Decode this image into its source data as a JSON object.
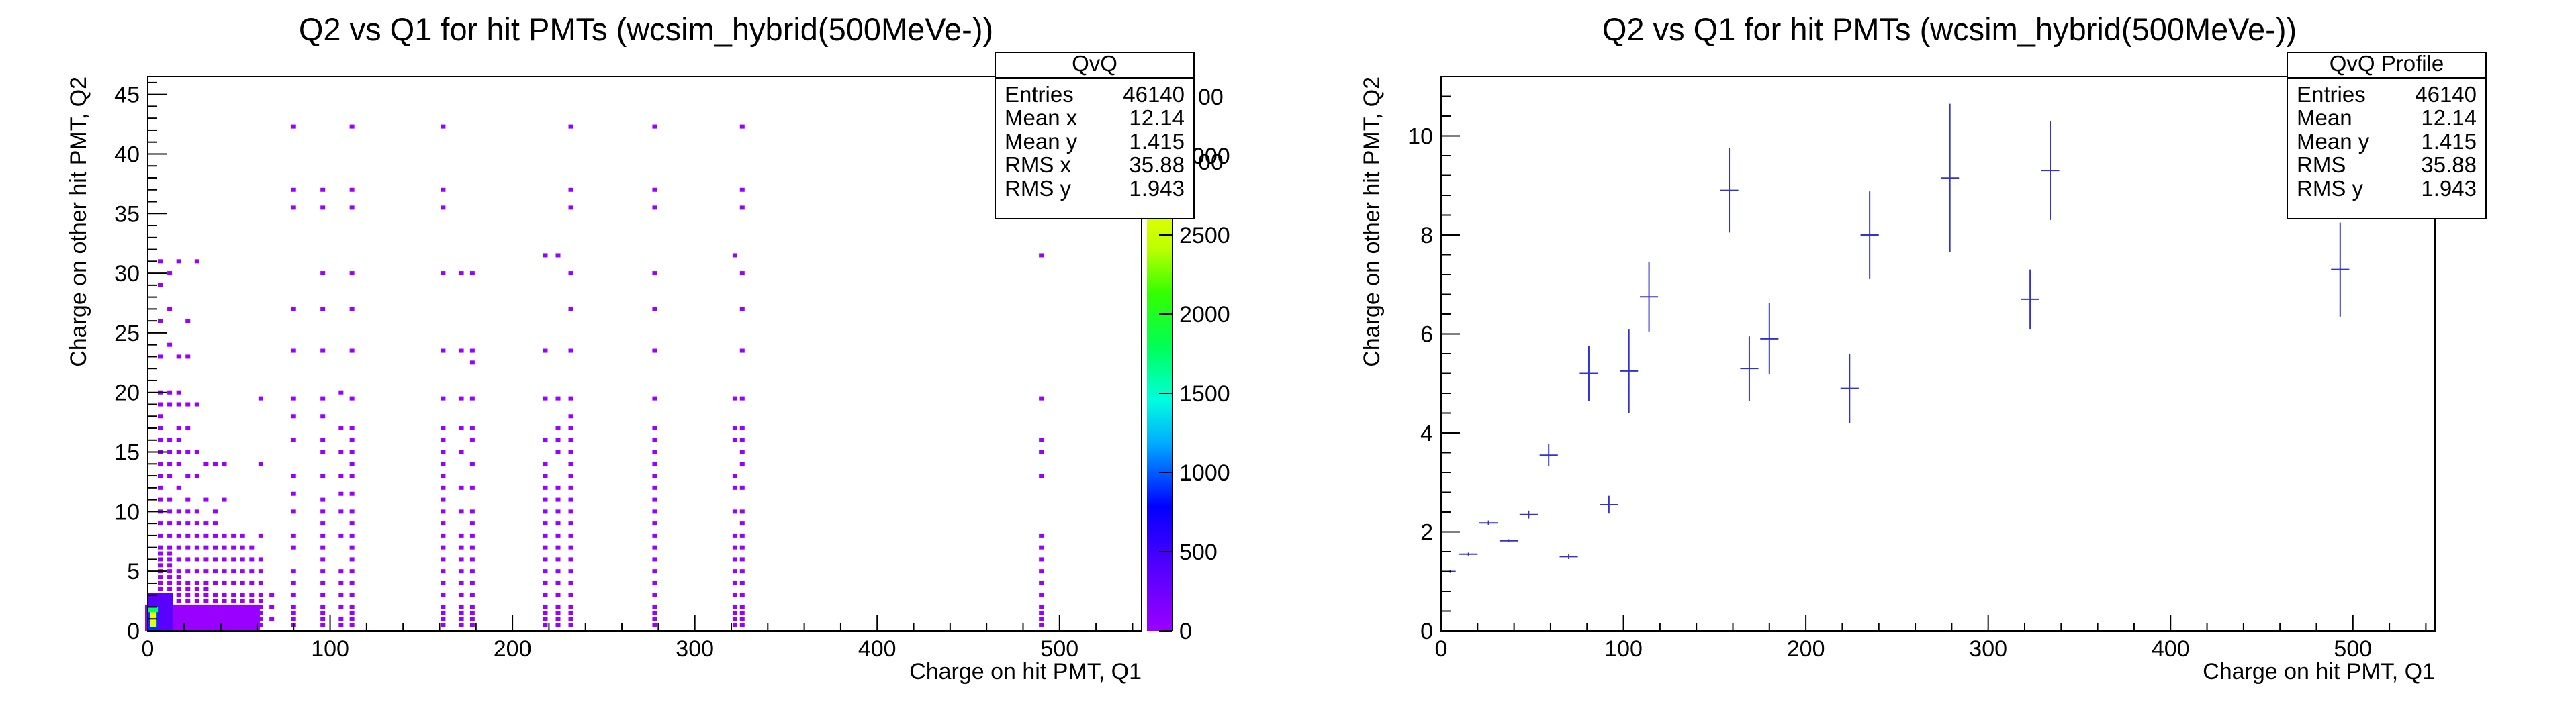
{
  "chart_data": [
    {
      "type": "heatmap",
      "title": "Q2 vs Q1 for hit PMTs (wcsim_hybrid(500MeVe-))",
      "xlabel": "Charge on hit PMT, Q1",
      "ylabel": "Charge on other hit PMT, Q2",
      "xlim": [
        0,
        545
      ],
      "ylim": [
        0,
        46.5
      ],
      "xticks": [
        "0",
        "100",
        "200",
        "300",
        "400",
        "500"
      ],
      "yticks": [
        "0",
        "5",
        "10",
        "15",
        "20",
        "25",
        "30",
        "35",
        "40",
        "45"
      ],
      "grid": false,
      "colorbar": {
        "range": [
          0,
          3500
        ],
        "ticks": [
          "0",
          "500",
          "1000",
          "1500",
          "2000",
          "2500",
          "3000"
        ],
        "hidden_tick_fragments": [
          "00",
          "00"
        ]
      },
      "stats": {
        "title": "QvQ",
        "rows": [
          {
            "label": "Entries",
            "value": "46140"
          },
          {
            "label": "Mean x",
            "value": "12.14"
          },
          {
            "label": "Mean y",
            "value": "1.415"
          },
          {
            "label": "RMS x",
            "value": "35.88"
          },
          {
            "label": "RMS y",
            "value": "1.943"
          }
        ]
      },
      "columns": [
        {
          "x": 7,
          "ys": [
            0.5,
            1,
            1.5,
            2,
            2.5,
            3,
            3.5,
            4,
            4.5,
            5,
            5.5,
            6,
            6.5,
            7,
            8,
            9,
            10,
            11,
            12,
            13,
            14,
            15,
            16,
            17,
            18,
            19,
            20,
            23,
            26,
            29,
            31
          ]
        },
        {
          "x": 12,
          "ys": [
            0.5,
            1,
            1.5,
            2,
            2.5,
            3,
            3.5,
            4,
            4.5,
            5,
            5.5,
            6,
            6.5,
            7,
            8,
            9,
            10,
            11,
            13,
            14,
            15,
            16,
            19,
            20,
            24,
            27,
            30
          ]
        },
        {
          "x": 17,
          "ys": [
            0.5,
            1,
            1.5,
            2,
            2.5,
            3,
            3.5,
            4,
            4.5,
            5,
            6,
            7,
            8,
            9,
            10,
            12,
            14,
            15,
            16,
            17,
            19,
            20,
            23,
            31
          ]
        },
        {
          "x": 22,
          "ys": [
            0.5,
            1,
            1.5,
            2,
            2.5,
            3,
            3.5,
            4,
            5,
            6,
            7,
            8,
            9,
            10,
            11,
            13,
            15,
            17,
            19,
            23,
            26
          ]
        },
        {
          "x": 27,
          "ys": [
            0.5,
            1,
            1.5,
            2,
            2.5,
            3,
            3.5,
            4,
            5,
            6,
            7,
            8,
            9,
            10,
            13,
            15,
            19,
            31
          ]
        },
        {
          "x": 32,
          "ys": [
            0.5,
            1,
            1.5,
            2,
            2.5,
            3,
            3.5,
            4,
            5,
            6,
            7,
            8,
            9,
            11,
            14
          ]
        },
        {
          "x": 37,
          "ys": [
            0.5,
            1,
            1.5,
            2,
            2.5,
            3,
            4,
            5,
            6,
            7,
            8,
            9,
            10,
            14
          ]
        },
        {
          "x": 42,
          "ys": [
            0.5,
            1,
            1.5,
            2,
            2.5,
            3,
            4,
            5,
            6,
            7,
            8,
            11,
            14
          ]
        },
        {
          "x": 47,
          "ys": [
            0.5,
            1,
            1.5,
            2,
            2.5,
            3,
            4,
            5,
            6,
            7,
            8
          ]
        },
        {
          "x": 52,
          "ys": [
            0.5,
            1,
            1.5,
            2,
            2.5,
            3,
            4,
            5,
            6,
            7,
            8
          ]
        },
        {
          "x": 57,
          "ys": [
            0.5,
            1,
            1.5,
            2,
            2.5,
            3,
            4,
            5,
            6,
            7
          ]
        },
        {
          "x": 62,
          "ys": [
            0.5,
            1,
            1.5,
            2,
            2.5,
            3,
            4,
            5,
            6,
            8,
            14,
            19.5
          ]
        },
        {
          "x": 68,
          "ys": [
            1,
            2,
            3
          ]
        },
        {
          "x": 80,
          "ys": [
            0.5,
            1,
            1.5,
            2,
            3,
            4,
            5,
            7,
            8,
            10,
            11.5,
            13,
            16,
            18,
            19.5,
            23.5,
            27,
            35.5,
            37,
            42.3
          ]
        },
        {
          "x": 96,
          "ys": [
            0.5,
            1,
            1.5,
            2,
            3,
            4,
            5,
            6,
            7,
            8,
            9,
            10,
            11,
            13,
            15,
            16,
            18,
            19.5,
            23.5,
            27,
            30,
            35.5,
            37
          ]
        },
        {
          "x": 106,
          "ys": [
            0.5,
            1,
            2,
            3,
            4,
            5,
            8,
            10,
            11.5,
            13,
            15,
            17,
            20
          ]
        },
        {
          "x": 112,
          "ys": [
            0.5,
            1,
            1.5,
            2,
            3,
            4,
            5,
            6,
            7,
            8,
            9,
            10,
            11.5,
            13,
            14,
            15,
            16,
            17,
            19.5,
            23.5,
            27,
            30,
            35.5,
            37,
            42.3
          ]
        },
        {
          "x": 162,
          "ys": [
            0.5,
            1,
            1.5,
            2,
            3,
            4,
            5,
            6,
            7,
            8,
            9,
            10,
            11,
            12,
            13,
            14,
            15,
            16,
            17,
            19.5,
            23.5,
            30,
            35.5,
            37,
            42.3
          ]
        },
        {
          "x": 172,
          "ys": [
            0.5,
            1,
            1.5,
            2,
            3,
            4,
            5,
            6,
            7,
            8,
            10,
            12,
            15,
            17,
            19.5,
            23.5,
            30
          ]
        },
        {
          "x": 178,
          "ys": [
            0.5,
            1,
            1.5,
            2,
            3,
            4,
            5,
            6,
            7,
            8,
            9,
            10,
            12,
            14,
            16,
            17,
            19.5,
            22.5,
            23.5,
            30
          ]
        },
        {
          "x": 218,
          "ys": [
            0.5,
            1,
            1.5,
            2,
            3,
            4,
            5,
            6,
            7,
            8,
            9,
            10,
            11,
            12,
            13,
            14,
            16,
            19.5,
            23.5,
            31.5
          ]
        },
        {
          "x": 225,
          "ys": [
            0.5,
            1,
            1.5,
            2,
            3,
            4,
            5,
            6,
            7,
            8,
            9,
            10,
            11,
            12,
            15,
            16,
            17,
            19.5,
            31.5
          ]
        },
        {
          "x": 232,
          "ys": [
            0.5,
            1,
            1.5,
            2,
            3,
            4,
            5,
            6,
            7,
            8,
            9,
            10,
            11,
            12,
            13,
            14,
            15,
            16,
            17,
            18,
            19.5,
            23.5,
            27,
            30,
            35.5,
            37,
            42.3
          ]
        },
        {
          "x": 278,
          "ys": [
            0.5,
            1,
            1.5,
            2,
            3,
            4,
            5,
            6,
            7,
            8,
            9,
            10,
            11,
            12,
            13,
            14,
            15,
            16,
            17,
            19.5,
            23.5,
            27,
            30,
            35.5,
            37,
            42.3
          ]
        },
        {
          "x": 322,
          "ys": [
            0.5,
            1,
            1.5,
            2,
            3,
            4,
            5,
            6,
            7,
            8,
            10,
            12,
            13,
            16,
            17,
            19.5,
            31.5
          ]
        },
        {
          "x": 326,
          "ys": [
            0.5,
            1,
            1.5,
            2,
            3,
            4,
            5,
            6,
            7,
            8,
            9,
            10,
            12,
            14,
            15,
            16,
            17,
            19.5,
            23.5,
            27,
            30,
            35.5,
            37,
            42.3
          ]
        },
        {
          "x": 490,
          "ys": [
            0.5,
            1,
            1.5,
            2,
            3,
            4,
            5,
            6,
            7,
            8,
            13,
            15,
            16,
            19.5,
            31.5
          ]
        }
      ],
      "hot_spot": {
        "x": 3,
        "y": 1,
        "value": 3500
      }
    },
    {
      "type": "scatter",
      "title": "Q2 vs Q1 for hit PMTs (wcsim_hybrid(500MeVe-))",
      "xlabel": "Charge on hit PMT, Q1",
      "ylabel": "Charge on other hit PMT, Q2",
      "xlim": [
        0,
        545
      ],
      "ylim": [
        0,
        11.2
      ],
      "xticks": [
        "0",
        "100",
        "200",
        "300",
        "400",
        "500"
      ],
      "yticks": [
        "0",
        "2",
        "4",
        "6",
        "8",
        "10"
      ],
      "grid": false,
      "error_bar_color": "#3333cc",
      "stats": {
        "title": "QvQ Profile",
        "rows": [
          {
            "label": "Entries",
            "value": "46140"
          },
          {
            "label": "Mean",
            "value": "12.14"
          },
          {
            "label": "Mean y",
            "value": "1.415"
          },
          {
            "label": "RMS",
            "value": "35.88"
          },
          {
            "label": "RMS y",
            "value": "1.943"
          }
        ]
      },
      "points": [
        {
          "x": 5,
          "y": 1.2,
          "xerr": 3,
          "yerr": 0
        },
        {
          "x": 15,
          "y": 1.55,
          "xerr": 5,
          "yerr": 0
        },
        {
          "x": 26,
          "y": 2.18,
          "xerr": 5,
          "yerr": 0.05
        },
        {
          "x": 37,
          "y": 1.82,
          "xerr": 5,
          "yerr": 0
        },
        {
          "x": 48,
          "y": 2.35,
          "xerr": 5,
          "yerr": 0.08
        },
        {
          "x": 59,
          "y": 3.55,
          "xerr": 5,
          "yerr": 0.22
        },
        {
          "x": 70,
          "y": 1.5,
          "xerr": 5,
          "yerr": 0.05
        },
        {
          "x": 81,
          "y": 5.2,
          "xerr": 5,
          "yerr": 0.55
        },
        {
          "x": 92,
          "y": 2.55,
          "xerr": 5,
          "yerr": 0.18
        },
        {
          "x": 103,
          "y": 5.25,
          "xerr": 5,
          "yerr": 0.85
        },
        {
          "x": 114,
          "y": 6.75,
          "xerr": 5,
          "yerr": 0.7
        },
        {
          "x": 158,
          "y": 8.9,
          "xerr": 5,
          "yerr": 0.85
        },
        {
          "x": 169,
          "y": 5.3,
          "xerr": 5,
          "yerr": 0.65
        },
        {
          "x": 180,
          "y": 5.9,
          "xerr": 5,
          "yerr": 0.72
        },
        {
          "x": 224,
          "y": 4.9,
          "xerr": 5,
          "yerr": 0.7
        },
        {
          "x": 235,
          "y": 8.0,
          "xerr": 5,
          "yerr": 0.88
        },
        {
          "x": 279,
          "y": 9.15,
          "xerr": 5,
          "yerr": 1.5
        },
        {
          "x": 323,
          "y": 6.7,
          "xerr": 5,
          "yerr": 0.6
        },
        {
          "x": 334,
          "y": 9.3,
          "xerr": 5,
          "yerr": 1.0
        },
        {
          "x": 493,
          "y": 7.3,
          "xerr": 5,
          "yerr": 0.95
        }
      ]
    }
  ]
}
